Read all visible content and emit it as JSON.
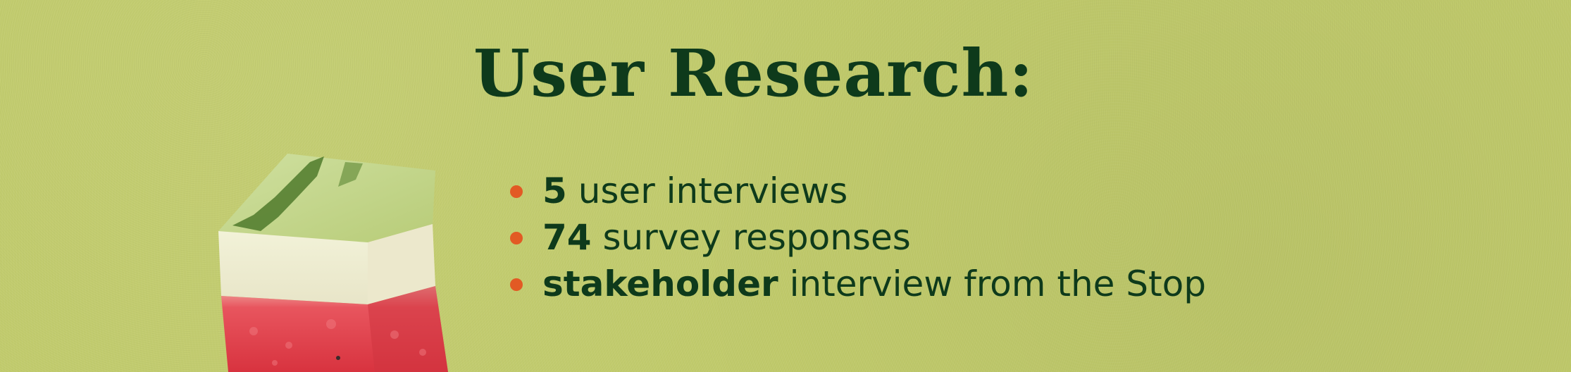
{
  "title": "User Research:",
  "bullets": [
    {
      "bold": "5",
      "text": " user interviews"
    },
    {
      "bold": "74",
      "text": " survey responses"
    },
    {
      "bold": "stakeholder",
      "text": " interview from the Stop"
    }
  ],
  "image": {
    "subject": "watermelon cube with rind"
  },
  "colors": {
    "background": "#c1cb6c",
    "text": "#0e3a1b",
    "bullet": "#e25a24"
  }
}
